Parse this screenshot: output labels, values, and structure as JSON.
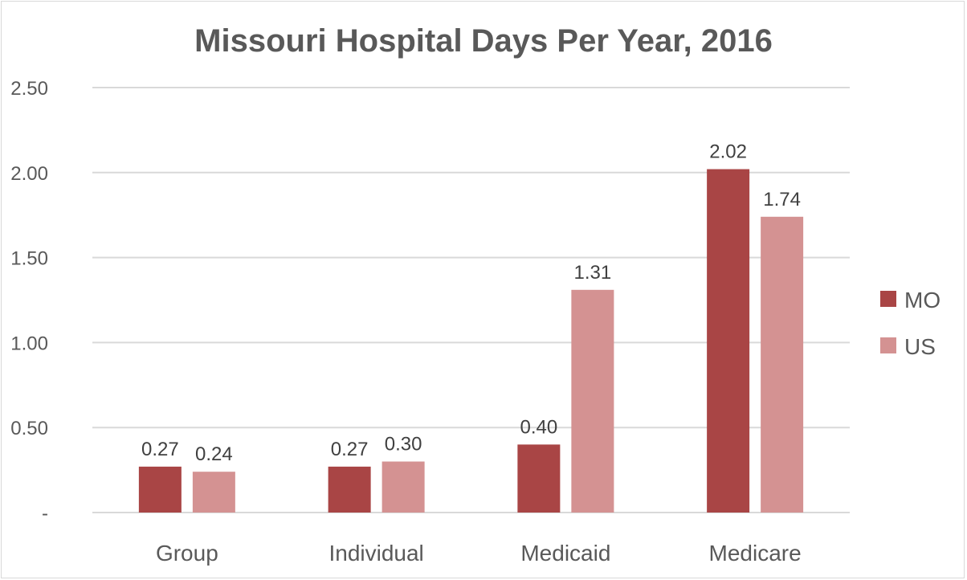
{
  "chart_data": {
    "type": "bar",
    "title": "Missouri Hospital Days Per Year, 2016",
    "xlabel": "",
    "ylabel": "",
    "categories": [
      "Group",
      "Individual",
      "Medicaid",
      "Medicare"
    ],
    "series": [
      {
        "name": "MO",
        "color": "#a94545",
        "values": [
          0.27,
          0.27,
          0.4,
          2.02
        ],
        "labels": [
          "0.27",
          "0.27",
          "0.40",
          "2.02"
        ]
      },
      {
        "name": "US",
        "color": "#d49292",
        "values": [
          0.24,
          0.3,
          1.31,
          1.74
        ],
        "labels": [
          "0.24",
          "0.30",
          "1.31",
          "1.74"
        ]
      }
    ],
    "ylim": [
      0,
      2.5
    ],
    "yticks": [
      0,
      0.5,
      1.0,
      1.5,
      2.0,
      2.5
    ],
    "ytick_labels": [
      "-",
      "0.50",
      "1.00",
      "1.50",
      "2.00",
      "2.50"
    ],
    "grid": true,
    "legend_position": "right"
  }
}
